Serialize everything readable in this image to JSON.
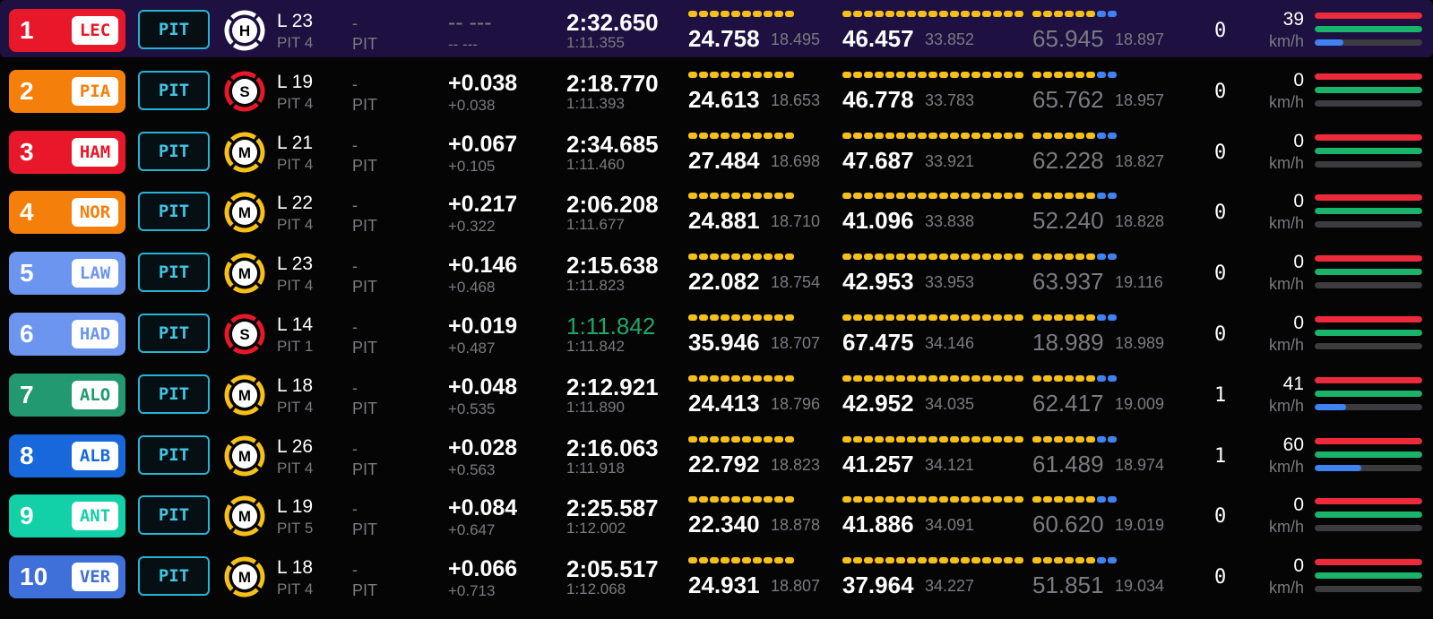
{
  "ui": {
    "pit_label": "PIT",
    "dash": "-",
    "speed_unit": "km/h",
    "colors": {
      "background": "#050506",
      "highlight_row": "#1e1040",
      "pit_border": "#27b3d3",
      "minisector_yellow": "#f6c018",
      "minisector_blue": "#3f82f2",
      "personal_best_green": "#1fa66b",
      "throttle_red": "#ed2a3a",
      "brake_green": "#19b36b"
    }
  },
  "drivers": [
    {
      "pos": "1",
      "tla": "LEC",
      "team_color": "#e8182a",
      "highlight": true,
      "tyre": {
        "letter": "H",
        "ring": "#ffffff",
        "icon": "hard-tyre-icon"
      },
      "lap": "L 23",
      "pits": "PIT 4",
      "gap": "-- ---",
      "interval": "-- ---",
      "gap_dim": true,
      "last_lap": "2:32.650",
      "best_lap": "1:11.355",
      "last_is_pb": false,
      "sectors": [
        {
          "time": "24.758",
          "best": "18.495",
          "dim": false
        },
        {
          "time": "46.457",
          "best": "33.852",
          "dim": false
        },
        {
          "time": "65.945",
          "best": "18.897",
          "dim": true
        }
      ],
      "drs": "0",
      "speed": "39",
      "throttle": 1.0,
      "brake": 1.0,
      "gear_frac": 0.27
    },
    {
      "pos": "2",
      "tla": "PIA",
      "team_color": "#f47f0a",
      "highlight": false,
      "tyre": {
        "letter": "S",
        "ring": "#e8182a",
        "icon": "soft-tyre-icon"
      },
      "lap": "L 19",
      "pits": "PIT 4",
      "gap": "+0.038",
      "interval": "+0.038",
      "gap_dim": false,
      "last_lap": "2:18.770",
      "best_lap": "1:11.393",
      "last_is_pb": false,
      "sectors": [
        {
          "time": "24.613",
          "best": "18.653",
          "dim": false
        },
        {
          "time": "46.778",
          "best": "33.783",
          "dim": false
        },
        {
          "time": "65.762",
          "best": "18.957",
          "dim": true
        }
      ],
      "drs": "0",
      "speed": "0",
      "throttle": 1.0,
      "brake": 1.0,
      "gear_frac": 0
    },
    {
      "pos": "3",
      "tla": "HAM",
      "team_color": "#e8182a",
      "highlight": false,
      "tyre": {
        "letter": "M",
        "ring": "#f6c018",
        "icon": "medium-tyre-icon"
      },
      "lap": "L 21",
      "pits": "PIT 4",
      "gap": "+0.067",
      "interval": "+0.105",
      "gap_dim": false,
      "last_lap": "2:34.685",
      "best_lap": "1:11.460",
      "last_is_pb": false,
      "sectors": [
        {
          "time": "27.484",
          "best": "18.698",
          "dim": false
        },
        {
          "time": "47.687",
          "best": "33.921",
          "dim": false
        },
        {
          "time": "62.228",
          "best": "18.827",
          "dim": true
        }
      ],
      "drs": "0",
      "speed": "0",
      "throttle": 1.0,
      "brake": 1.0,
      "gear_frac": 0
    },
    {
      "pos": "4",
      "tla": "NOR",
      "team_color": "#f47f0a",
      "highlight": false,
      "tyre": {
        "letter": "M",
        "ring": "#f6c018",
        "icon": "medium-tyre-icon"
      },
      "lap": "L 22",
      "pits": "PIT 4",
      "gap": "+0.217",
      "interval": "+0.322",
      "gap_dim": false,
      "last_lap": "2:06.208",
      "best_lap": "1:11.677",
      "last_is_pb": false,
      "sectors": [
        {
          "time": "24.881",
          "best": "18.710",
          "dim": false
        },
        {
          "time": "41.096",
          "best": "33.838",
          "dim": false
        },
        {
          "time": "52.240",
          "best": "18.828",
          "dim": true
        }
      ],
      "drs": "0",
      "speed": "0",
      "throttle": 1.0,
      "brake": 1.0,
      "gear_frac": 0
    },
    {
      "pos": "5",
      "tla": "LAW",
      "team_color": "#6c95f0",
      "highlight": false,
      "tyre": {
        "letter": "M",
        "ring": "#f6c018",
        "icon": "medium-tyre-icon"
      },
      "lap": "L 23",
      "pits": "PIT 4",
      "gap": "+0.146",
      "interval": "+0.468",
      "gap_dim": false,
      "last_lap": "2:15.638",
      "best_lap": "1:11.823",
      "last_is_pb": false,
      "sectors": [
        {
          "time": "22.082",
          "best": "18.754",
          "dim": false
        },
        {
          "time": "42.953",
          "best": "33.953",
          "dim": false
        },
        {
          "time": "63.937",
          "best": "19.116",
          "dim": true
        }
      ],
      "drs": "0",
      "speed": "0",
      "throttle": 1.0,
      "brake": 1.0,
      "gear_frac": 0
    },
    {
      "pos": "6",
      "tla": "HAD",
      "team_color": "#6c95f0",
      "highlight": false,
      "tyre": {
        "letter": "S",
        "ring": "#e8182a",
        "icon": "soft-tyre-icon"
      },
      "lap": "L 14",
      "pits": "PIT 1",
      "gap": "+0.019",
      "interval": "+0.487",
      "gap_dim": false,
      "last_lap": "1:11.842",
      "best_lap": "1:11.842",
      "last_is_pb": true,
      "sectors": [
        {
          "time": "35.946",
          "best": "18.707",
          "dim": false
        },
        {
          "time": "67.475",
          "best": "34.146",
          "dim": false
        },
        {
          "time": "18.989",
          "best": "18.989",
          "dim": true
        }
      ],
      "drs": "0",
      "speed": "0",
      "throttle": 1.0,
      "brake": 1.0,
      "gear_frac": 0
    },
    {
      "pos": "7",
      "tla": "ALO",
      "team_color": "#229971",
      "highlight": false,
      "tyre": {
        "letter": "M",
        "ring": "#f6c018",
        "icon": "medium-tyre-icon"
      },
      "lap": "L 18",
      "pits": "PIT 4",
      "gap": "+0.048",
      "interval": "+0.535",
      "gap_dim": false,
      "last_lap": "2:12.921",
      "best_lap": "1:11.890",
      "last_is_pb": false,
      "sectors": [
        {
          "time": "24.413",
          "best": "18.796",
          "dim": false
        },
        {
          "time": "42.952",
          "best": "34.035",
          "dim": false
        },
        {
          "time": "62.417",
          "best": "19.009",
          "dim": true
        }
      ],
      "drs": "1",
      "speed": "41",
      "throttle": 1.0,
      "brake": 1.0,
      "gear_frac": 0.29
    },
    {
      "pos": "8",
      "tla": "ALB",
      "team_color": "#1868db",
      "highlight": false,
      "tyre": {
        "letter": "M",
        "ring": "#f6c018",
        "icon": "medium-tyre-icon"
      },
      "lap": "L 26",
      "pits": "PIT 4",
      "gap": "+0.028",
      "interval": "+0.563",
      "gap_dim": false,
      "last_lap": "2:16.063",
      "best_lap": "1:11.918",
      "last_is_pb": false,
      "sectors": [
        {
          "time": "22.792",
          "best": "18.823",
          "dim": false
        },
        {
          "time": "41.257",
          "best": "34.121",
          "dim": false
        },
        {
          "time": "61.489",
          "best": "18.974",
          "dim": true
        }
      ],
      "drs": "1",
      "speed": "60",
      "throttle": 1.0,
      "brake": 1.0,
      "gear_frac": 0.43
    },
    {
      "pos": "9",
      "tla": "ANT",
      "team_color": "#12d0a8",
      "highlight": false,
      "tyre": {
        "letter": "M",
        "ring": "#f6c018",
        "icon": "medium-tyre-icon"
      },
      "lap": "L 19",
      "pits": "PIT 5",
      "gap": "+0.084",
      "interval": "+0.647",
      "gap_dim": false,
      "last_lap": "2:25.587",
      "best_lap": "1:12.002",
      "last_is_pb": false,
      "sectors": [
        {
          "time": "22.340",
          "best": "18.878",
          "dim": false
        },
        {
          "time": "41.886",
          "best": "34.091",
          "dim": false
        },
        {
          "time": "60.620",
          "best": "19.019",
          "dim": true
        }
      ],
      "drs": "0",
      "speed": "0",
      "throttle": 1.0,
      "brake": 1.0,
      "gear_frac": 0
    },
    {
      "pos": "10",
      "tla": "VER",
      "team_color": "#3f6fd8",
      "highlight": false,
      "tyre": {
        "letter": "M",
        "ring": "#f6c018",
        "icon": "medium-tyre-icon"
      },
      "lap": "L 18",
      "pits": "PIT 4",
      "gap": "+0.066",
      "interval": "+0.713",
      "gap_dim": false,
      "last_lap": "2:05.517",
      "best_lap": "1:12.068",
      "last_is_pb": false,
      "sectors": [
        {
          "time": "24.931",
          "best": "18.807",
          "dim": false
        },
        {
          "time": "37.964",
          "best": "34.227",
          "dim": false
        },
        {
          "time": "51.851",
          "best": "19.034",
          "dim": true
        }
      ],
      "drs": "0",
      "speed": "0",
      "throttle": 1.0,
      "brake": 1.0,
      "gear_frac": 0
    }
  ]
}
